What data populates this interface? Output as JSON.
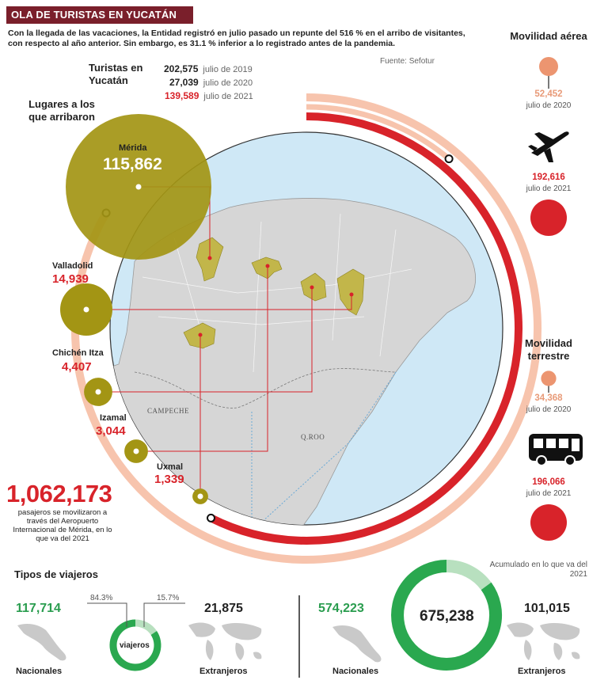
{
  "header": {
    "title": "OLA DE TURISTAS EN YUCATÁN",
    "intro": "Con la llegada de las vacaciones, la Entidad registró en julio pasado un repunte del 516 % en el arribo de visitantes, con respecto al año anterior. Sin embargo, es 31.1 % inferior a lo registrado antes de la pandemia.",
    "source": "Fuente: Sefotur"
  },
  "chart_data": [
    {
      "type": "bar",
      "title": "Turistas en Yucatán",
      "categories": [
        "julio de 2019",
        "julio de 2020",
        "julio de 2021"
      ],
      "values": [
        202575,
        27039,
        139589
      ],
      "labels": [
        "202,575",
        "27,039",
        "139,589"
      ],
      "colors": [
        "#f7c4ad",
        "#f7c4ad",
        "#d8232a"
      ]
    },
    {
      "type": "scatter",
      "title": "Lugares a los que arribaron",
      "categories": [
        "Mérida",
        "Valladolid",
        "Chichén Itza",
        "Izamal",
        "Uxmal"
      ],
      "values": [
        115862,
        14939,
        4407,
        3044,
        1339
      ],
      "labels": [
        "115,862",
        "14,939",
        "4,407",
        "3,044",
        "1,339"
      ],
      "color": "#a39514"
    },
    {
      "type": "scatter",
      "title": "Movilidad aérea",
      "categories": [
        "julio de 2020",
        "julio de 2021"
      ],
      "values": [
        52452,
        192616
      ],
      "labels": [
        "52,452",
        "192,616"
      ]
    },
    {
      "type": "scatter",
      "title": "Movilidad terrestre",
      "categories": [
        "julio de 2020",
        "julio de 2021"
      ],
      "values": [
        34368,
        196066
      ],
      "labels": [
        "34,368",
        "196,066"
      ]
    },
    {
      "type": "pie",
      "title": "Tipos de viajeros",
      "center_label": "viajeros",
      "categories": [
        "Nacionales",
        "Extranjeros"
      ],
      "values": [
        117714,
        21875
      ],
      "labels": [
        "117,714",
        "21,875"
      ],
      "percent_labels": [
        "84.3%",
        "15.7%"
      ],
      "colors": [
        "#2aa84f",
        "#b8e0bf"
      ]
    },
    {
      "type": "pie",
      "title": "Acumulado en lo que va del 2021",
      "total_label": "675,238",
      "categories": [
        "Nacionales",
        "Extranjeros"
      ],
      "values": [
        574223,
        101015
      ],
      "labels": [
        "574,223",
        "101,015"
      ],
      "colors": [
        "#2aa84f",
        "#b8e0bf"
      ]
    }
  ],
  "airport": {
    "total": "1,062,173",
    "note": "pasajeros se movilizaron a través del Aeropuerto Internacional de Mérida, en lo que va del 2021"
  },
  "map": {
    "labels": {
      "campeche": "CAMPECHE",
      "qroo": "Q.ROO"
    }
  },
  "colors": {
    "title_bg": "#7a1f2b",
    "red": "#d8232a",
    "salmon": "#f7c4ad",
    "olive": "#a39514",
    "sea": "#cfe8f6",
    "land": "#d6d6d6",
    "green": "#2aa84f",
    "light_green": "#b8e0bf"
  },
  "icons": {
    "plane": "airplane-icon",
    "bus": "bus-icon",
    "mexico": "mexico-map-icon",
    "world": "world-map-icon"
  }
}
